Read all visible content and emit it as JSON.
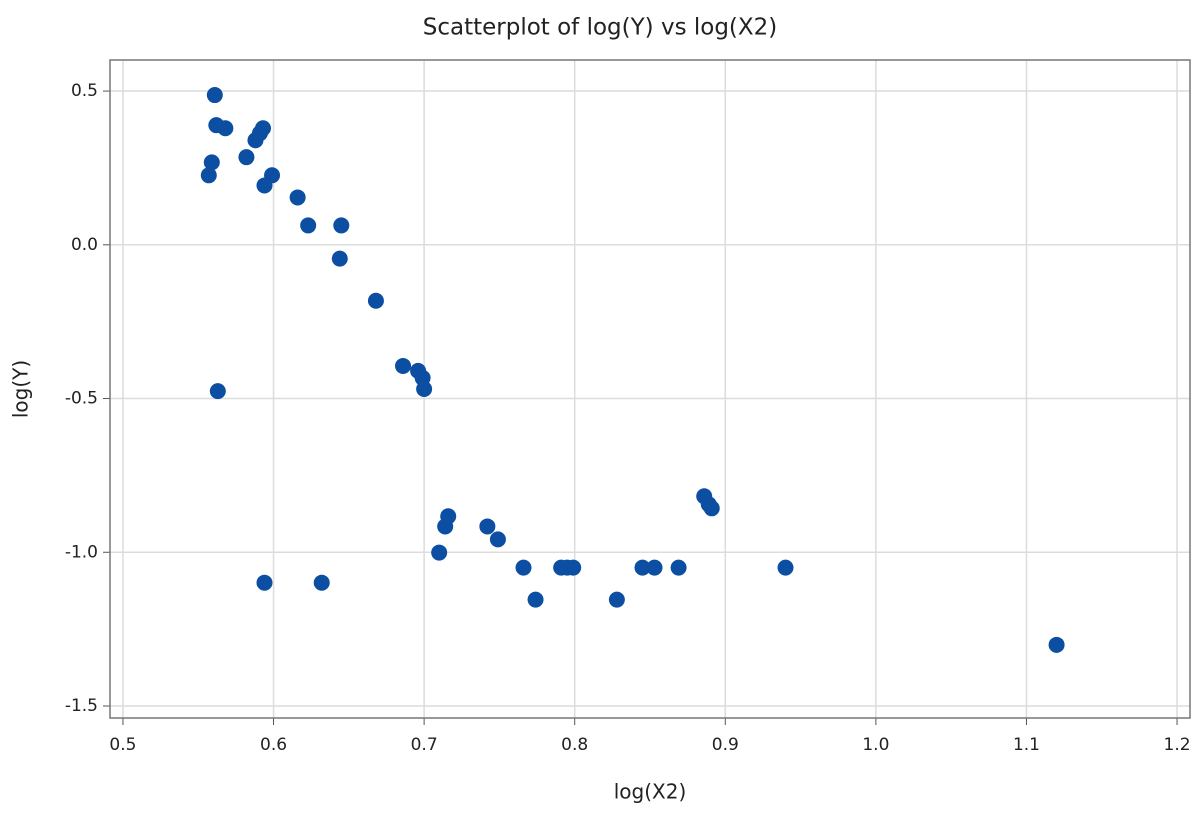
{
  "chart_data": {
    "type": "scatter",
    "title": "Scatterplot of log(Y) vs log(X2)",
    "x_label": "log(X2)",
    "y_label": "log(Y)",
    "series": [
      {
        "color": "#0b4ea2",
        "x": [
          0.561,
          0.562,
          0.568,
          0.559,
          0.557,
          0.582,
          0.588,
          0.591,
          0.593,
          0.594,
          0.599,
          0.616,
          0.623,
          0.645,
          0.644,
          0.668,
          0.686,
          0.696,
          0.699,
          0.7,
          0.563,
          0.594,
          0.632,
          0.71,
          0.714,
          0.716,
          0.742,
          0.749,
          0.766,
          0.774,
          0.791,
          0.795,
          0.799,
          0.828,
          0.845,
          0.853,
          0.869,
          0.886,
          0.889,
          0.891,
          0.94,
          1.12
        ],
        "values": [
          0.487,
          0.389,
          0.379,
          0.268,
          0.226,
          0.285,
          0.34,
          0.363,
          0.379,
          0.193,
          0.226,
          0.154,
          0.063,
          0.063,
          -0.045,
          -0.182,
          -0.394,
          -0.41,
          -0.433,
          -0.469,
          -0.476,
          -1.099,
          -1.099,
          -1.001,
          -0.916,
          -0.883,
          -0.916,
          -0.958,
          -1.05,
          -1.154,
          -1.05,
          -1.05,
          -1.05,
          -1.154,
          -1.05,
          -1.05,
          -1.05,
          -0.818,
          -0.844,
          -0.857,
          -1.05,
          -1.301
        ]
      }
    ],
    "xlim": [
      0.4914,
      1.2086
    ],
    "xticks": [
      0.5,
      0.6,
      0.7,
      0.8,
      0.9,
      {
        "value": 1.0,
        "label": "1.0"
      },
      1.1,
      1.2
    ],
    "ylim": [
      -1.539,
      0.601
    ],
    "yticks": [
      {
        "value": -1.5,
        "label": "-1.5"
      },
      {
        "value": -1.0,
        "label": "-1.0"
      },
      -0.5,
      {
        "value": 0.0,
        "label": "0.0"
      },
      0.5
    ],
    "grid": true
  }
}
